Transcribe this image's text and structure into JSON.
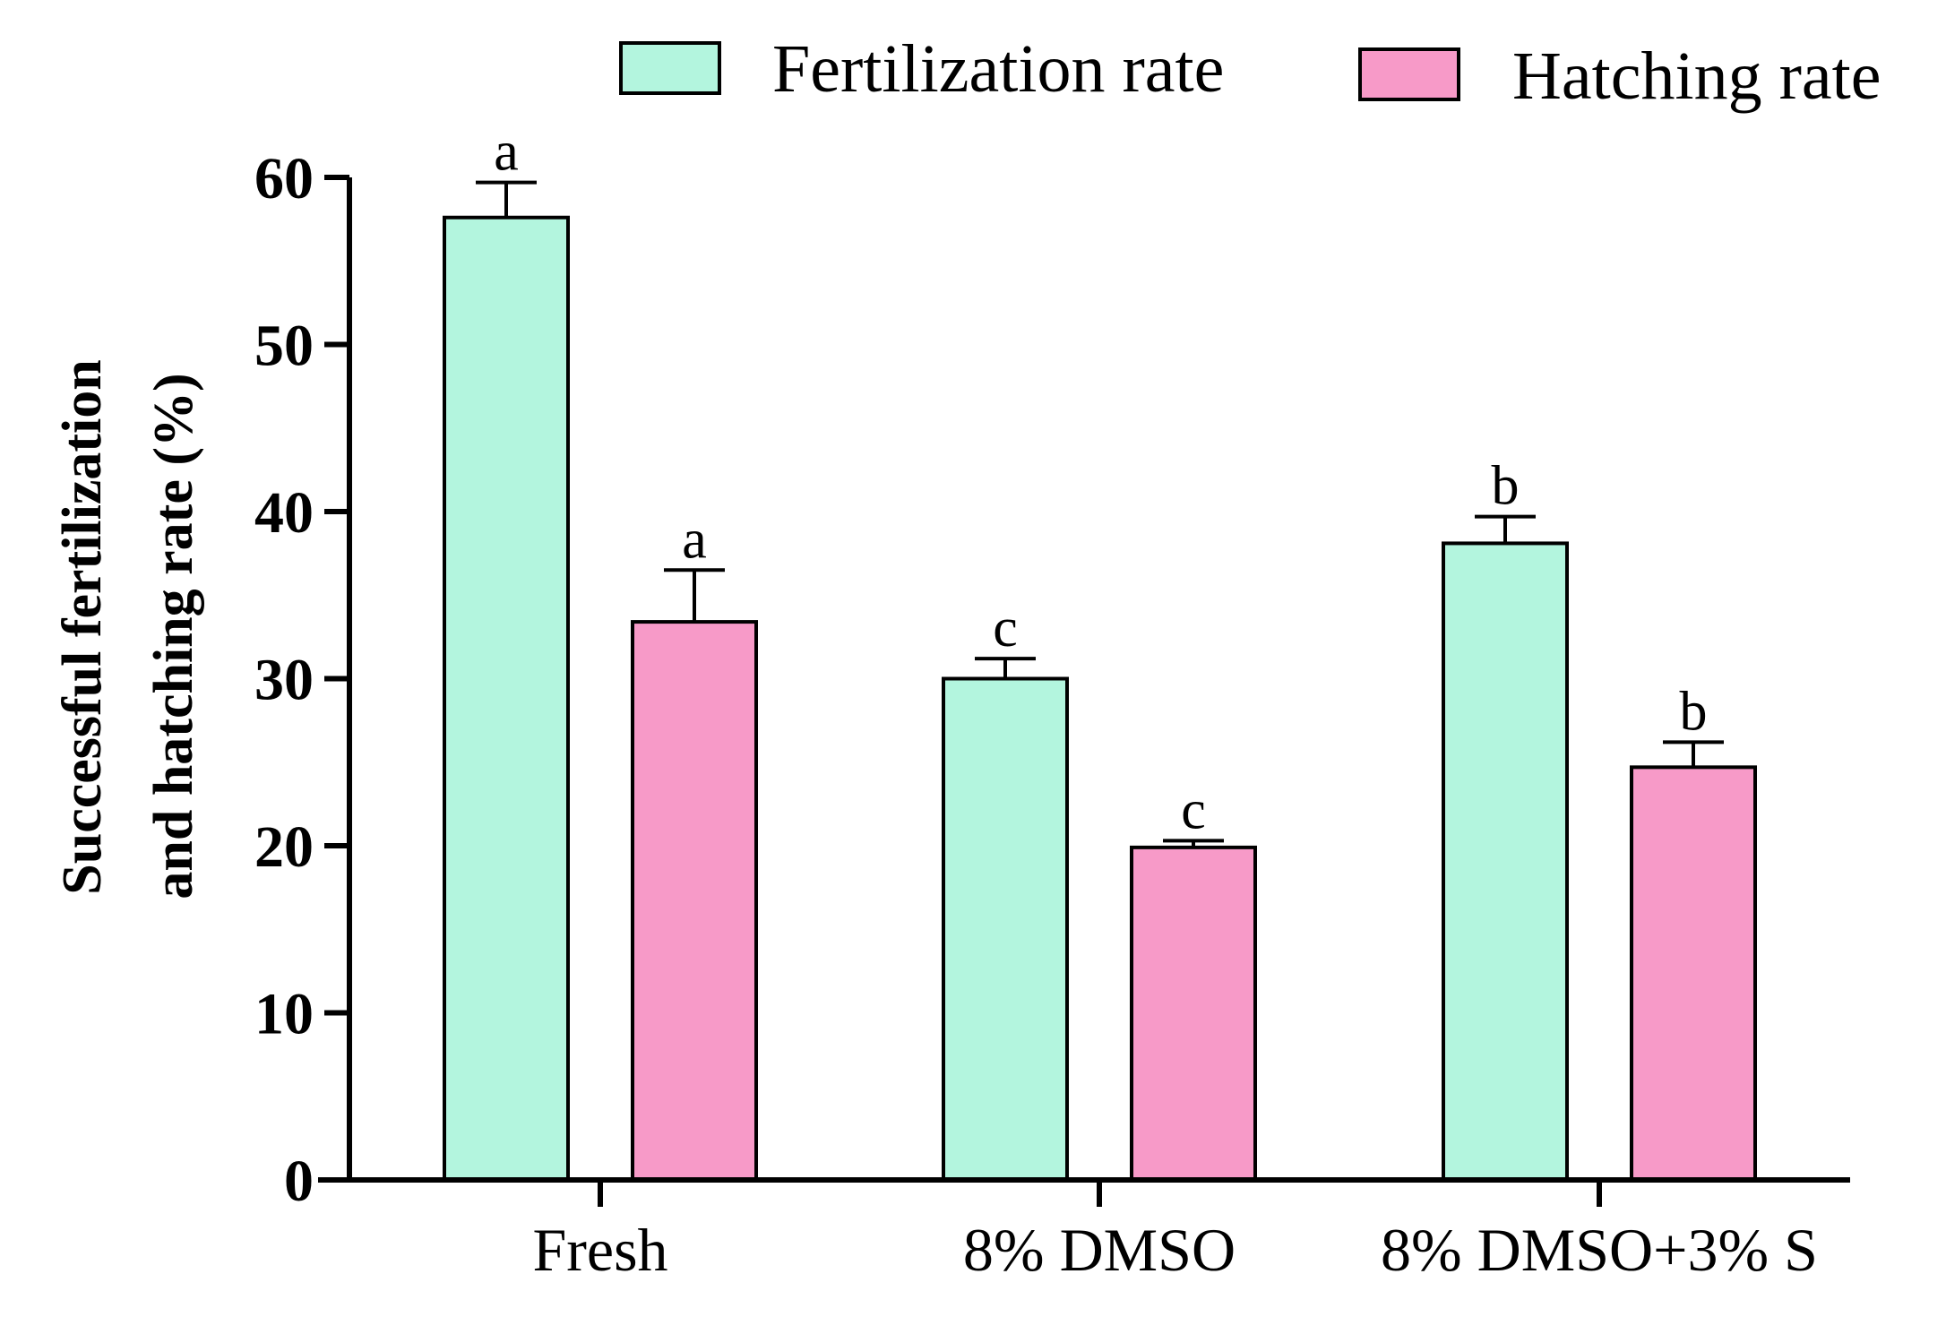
{
  "chart_data": {
    "type": "bar",
    "ylabel_lines": [
      "Successful fertilization",
      "and hatching rate (%)"
    ],
    "xlabel": "",
    "ylim": [
      0,
      60
    ],
    "yticks": [
      "0",
      "10",
      "20",
      "30",
      "40",
      "50",
      "60"
    ],
    "categories": [
      "Fresh",
      "8% DMSO",
      "8% DMSO+3% S"
    ],
    "legend_position": "top-right",
    "series": [
      {
        "name": "Fertilization rate",
        "color": "#b3f5de",
        "values": [
          57.6,
          30.0,
          38.1
        ],
        "errors": [
          2.1,
          1.2,
          1.6
        ],
        "labels": [
          "a",
          "c",
          "b"
        ]
      },
      {
        "name": "Hatching rate",
        "color": "#f79ac8",
        "values": [
          33.4,
          19.9,
          24.7
        ],
        "errors": [
          3.1,
          0.4,
          1.5
        ],
        "labels": [
          "a",
          "c",
          "b"
        ]
      }
    ]
  }
}
